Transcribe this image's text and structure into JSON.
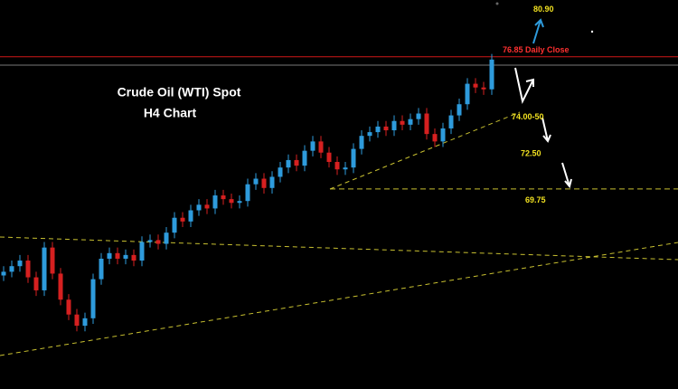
{
  "chart_data": {
    "type": "candlestick",
    "title": "Crude Oil (WTI) Spot",
    "subtitle": "H4 Chart",
    "ylim": [
      59,
      79.9
    ],
    "up_color": "#2e9bdc",
    "down_color": "#d62020",
    "open": [
      65.1,
      65.3,
      65.6,
      65.9,
      65.0,
      64.3,
      66.6,
      65.2,
      63.8,
      63.0,
      62.4,
      62.8,
      64.9,
      66.0,
      66.3,
      66.0,
      66.2,
      65.9,
      66.9,
      67.0,
      66.8,
      67.4,
      68.2,
      68.0,
      68.6,
      68.9,
      68.7,
      69.4,
      69.2,
      69.0,
      69.1,
      70.0,
      70.3,
      69.8,
      70.4,
      70.9,
      71.3,
      71.0,
      71.8,
      72.3,
      71.7,
      71.2,
      70.8,
      70.9,
      71.9,
      72.6,
      72.8,
      73.1,
      72.9,
      73.4,
      73.2,
      73.5,
      73.8,
      72.7,
      72.3,
      73.0,
      73.7,
      74.3,
      75.4,
      75.2,
      75.1
    ],
    "high": [
      65.6,
      65.9,
      66.2,
      66.2,
      65.3,
      66.9,
      66.9,
      65.5,
      64.1,
      63.3,
      63.1,
      65.2,
      66.3,
      66.6,
      66.6,
      66.5,
      66.5,
      67.2,
      67.3,
      67.3,
      67.7,
      68.5,
      68.5,
      68.9,
      69.2,
      69.2,
      69.7,
      69.7,
      69.5,
      69.4,
      70.3,
      70.6,
      70.6,
      70.7,
      71.2,
      71.6,
      71.6,
      72.1,
      72.6,
      72.6,
      72.0,
      71.5,
      71.2,
      72.2,
      72.9,
      73.1,
      73.4,
      73.4,
      73.7,
      73.7,
      73.8,
      74.1,
      74.1,
      73.0,
      73.3,
      74.0,
      74.6,
      75.7,
      75.7,
      75.5,
      77.0
    ],
    "low": [
      64.8,
      65.0,
      65.3,
      64.7,
      64.0,
      64.0,
      64.9,
      63.5,
      62.7,
      62.1,
      62.1,
      62.5,
      64.6,
      65.7,
      65.7,
      65.7,
      65.6,
      65.6,
      66.6,
      66.5,
      66.5,
      67.1,
      67.7,
      67.7,
      68.3,
      68.4,
      68.4,
      68.9,
      68.7,
      68.7,
      68.8,
      69.7,
      69.5,
      69.5,
      70.1,
      70.6,
      70.7,
      70.7,
      71.5,
      71.4,
      70.9,
      70.5,
      70.5,
      70.6,
      71.6,
      72.3,
      72.5,
      72.6,
      72.6,
      72.9,
      72.9,
      73.2,
      72.4,
      72.0,
      72.0,
      72.7,
      73.4,
      74.0,
      74.9,
      74.8,
      74.8
    ],
    "close": [
      65.3,
      65.6,
      65.9,
      65.0,
      64.3,
      66.6,
      65.2,
      63.8,
      63.0,
      62.4,
      62.8,
      64.9,
      66.0,
      66.3,
      66.0,
      66.2,
      65.9,
      66.9,
      67.0,
      66.8,
      67.4,
      68.2,
      68.0,
      68.6,
      68.9,
      68.7,
      69.4,
      69.2,
      69.0,
      69.1,
      70.0,
      70.3,
      69.8,
      70.4,
      70.9,
      71.3,
      71.0,
      71.8,
      72.3,
      71.7,
      71.2,
      70.8,
      70.9,
      71.9,
      72.6,
      72.8,
      73.1,
      72.9,
      73.4,
      73.2,
      73.5,
      73.8,
      72.7,
      72.3,
      73.0,
      73.7,
      74.3,
      75.4,
      75.2,
      75.1,
      76.7
    ],
    "levels": [
      {
        "value": 80.9,
        "label": "80.90",
        "label_color": "#f0e020"
      },
      {
        "value": 76.85,
        "label": "76.85 Daily Close",
        "label_color": "#ff3030",
        "line": "solid",
        "color": "#d01818"
      },
      {
        "value": 74.0,
        "label": "74.00-50",
        "label_color": "#f0e020"
      },
      {
        "value": 72.5,
        "label": "72.50",
        "label_color": "#f0e020"
      },
      {
        "value": 69.75,
        "label": "69.75",
        "label_color": "#f0e020",
        "line": "dashed",
        "color": "#c8c030"
      },
      {
        "value": 76.4,
        "line": "solid",
        "color": "#777"
      }
    ]
  }
}
